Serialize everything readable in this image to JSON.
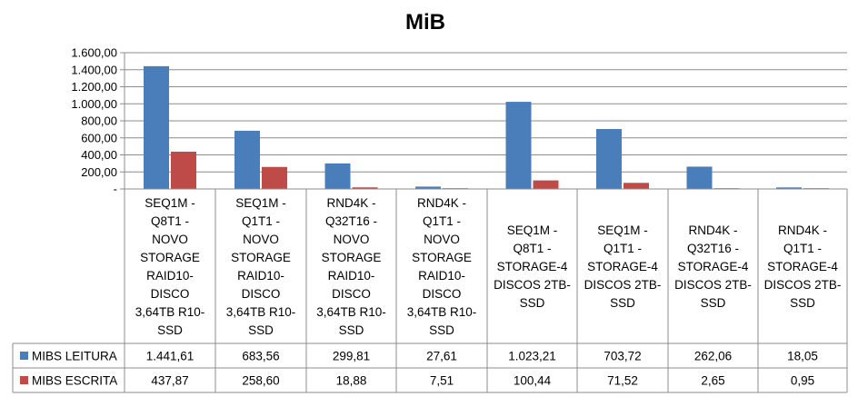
{
  "chart_data": {
    "type": "bar",
    "title": "MiB",
    "xlabel": "",
    "ylabel": "",
    "ylim": [
      0,
      1600
    ],
    "yticks": [
      "-",
      "200,00",
      "400,00",
      "600,00",
      "800,00",
      "1.000,00",
      "1.200,00",
      "1.400,00",
      "1.600,00"
    ],
    "grid": true,
    "legend": "data-table-left",
    "categories": [
      "SEQ1M - Q8T1 - NOVO STORAGE RAID10-DISCO 3,64TB R10-SSD",
      "SEQ1M - Q1T1 - NOVO STORAGE RAID10-DISCO 3,64TB R10-SSD",
      "RND4K - Q32T16 - NOVO STORAGE RAID10-DISCO 3,64TB R10-SSD",
      "RND4K - Q1T1 - NOVO STORAGE RAID10-DISCO 3,64TB R10-SSD",
      "SEQ1M - Q8T1 - STORAGE-4 DISCOS 2TB-SSD",
      "SEQ1M - Q1T1 - STORAGE-4 DISCOS 2TB-SSD",
      "RND4K - Q32T16 - STORAGE-4 DISCOS 2TB-SSD",
      "RND4K - Q1T1 - STORAGE-4 DISCOS 2TB-SSD"
    ],
    "category_lines": [
      [
        "SEQ1M -",
        "Q8T1 -",
        "NOVO",
        "STORAGE",
        "RAID10-",
        "DISCO",
        "3,64TB R10-",
        "SSD"
      ],
      [
        "SEQ1M -",
        "Q1T1 -",
        "NOVO",
        "STORAGE",
        "RAID10-",
        "DISCO",
        "3,64TB R10-",
        "SSD"
      ],
      [
        "RND4K -",
        "Q32T16 -",
        "NOVO",
        "STORAGE",
        "RAID10-",
        "DISCO",
        "3,64TB R10-",
        "SSD"
      ],
      [
        "RND4K -",
        "Q1T1 -",
        "NOVO",
        "STORAGE",
        "RAID10-",
        "DISCO",
        "3,64TB R10-",
        "SSD"
      ],
      [
        "SEQ1M -",
        "Q8T1 -",
        "STORAGE-4",
        "DISCOS 2TB-",
        "SSD"
      ],
      [
        "SEQ1M -",
        "Q1T1 -",
        "STORAGE-4",
        "DISCOS 2TB-",
        "SSD"
      ],
      [
        "RND4K -",
        "Q32T16 -",
        "STORAGE-4",
        "DISCOS 2TB-",
        "SSD"
      ],
      [
        "RND4K -",
        "Q1T1 -",
        "STORAGE-4",
        "DISCOS 2TB-",
        "SSD"
      ]
    ],
    "series": [
      {
        "name": "MIBS LEITURA",
        "color": "#4a7ebb",
        "values": [
          1441.61,
          683.56,
          299.81,
          27.61,
          1023.21,
          703.72,
          262.06,
          18.05
        ],
        "labels": [
          "1.441,61",
          "683,56",
          "299,81",
          "27,61",
          "1.023,21",
          "703,72",
          "262,06",
          "18,05"
        ]
      },
      {
        "name": "MIBS ESCRITA",
        "color": "#be4b48",
        "values": [
          437.87,
          258.6,
          18.88,
          7.51,
          100.44,
          71.52,
          2.65,
          0.95
        ],
        "labels": [
          "437,87",
          "258,60",
          "18,88",
          "7,51",
          "100,44",
          "71,52",
          "2,65",
          "0,95"
        ]
      }
    ]
  }
}
